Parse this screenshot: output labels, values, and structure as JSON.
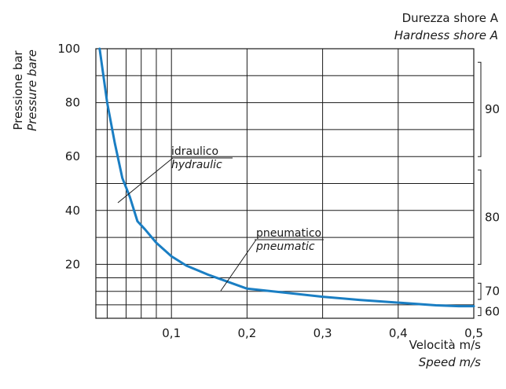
{
  "chart_data": {
    "type": "line",
    "title": "",
    "xlabel": "Velocità m/s",
    "xlabel_en": "Speed m/s",
    "ylabel": "Pressione bar",
    "ylabel_en": "Pressure bare",
    "xlim": [
      0,
      0.5
    ],
    "ylim": [
      0,
      100
    ],
    "x_ticks": [
      0.1,
      0.2,
      0.3,
      0.4,
      0.5
    ],
    "x_tick_labels": [
      "0,1",
      "0,2",
      "0,3",
      "0,4",
      "0,5"
    ],
    "y_ticks": [
      20,
      40,
      60,
      80,
      100
    ],
    "y_tick_labels": [
      "20",
      "40",
      "60",
      "80",
      "100"
    ],
    "grid": true,
    "x_grid_lines": [
      0.015,
      0.04,
      0.06,
      0.08,
      0.1,
      0.2,
      0.3,
      0.4
    ],
    "y_grid_lines": [
      5,
      10,
      15,
      20,
      30,
      40,
      50,
      60,
      70,
      80,
      90
    ],
    "series": [
      {
        "x": [
          0.005,
          0.015,
          0.025,
          0.035,
          0.045,
          0.055,
          0.065,
          0.08,
          0.1,
          0.12,
          0.15,
          0.18,
          0.2,
          0.25,
          0.3,
          0.35,
          0.4,
          0.45,
          0.48,
          0.5
        ],
        "y": [
          100,
          80,
          65,
          52,
          45,
          36,
          33,
          28,
          23,
          19.5,
          16,
          13,
          11,
          9.5,
          8,
          6.8,
          5.8,
          4.8,
          4.5,
          4.5
        ]
      }
    ],
    "line_color": "#1a7ec3",
    "annotations": [
      {
        "text": "idraulico",
        "text_en": "hydraulic"
      },
      {
        "text": "pneumatico",
        "text_en": "pneumatic"
      }
    ],
    "secondary_axis": {
      "label": "Durezza shore A",
      "label_en": "Hardness shore A",
      "bands": [
        {
          "label": "90",
          "from": 60,
          "to": 95
        },
        {
          "label": "80",
          "from": 20,
          "to": 55
        },
        {
          "label": "70",
          "from": 7,
          "to": 13
        },
        {
          "label": "60",
          "from": 1,
          "to": 4
        }
      ]
    }
  }
}
